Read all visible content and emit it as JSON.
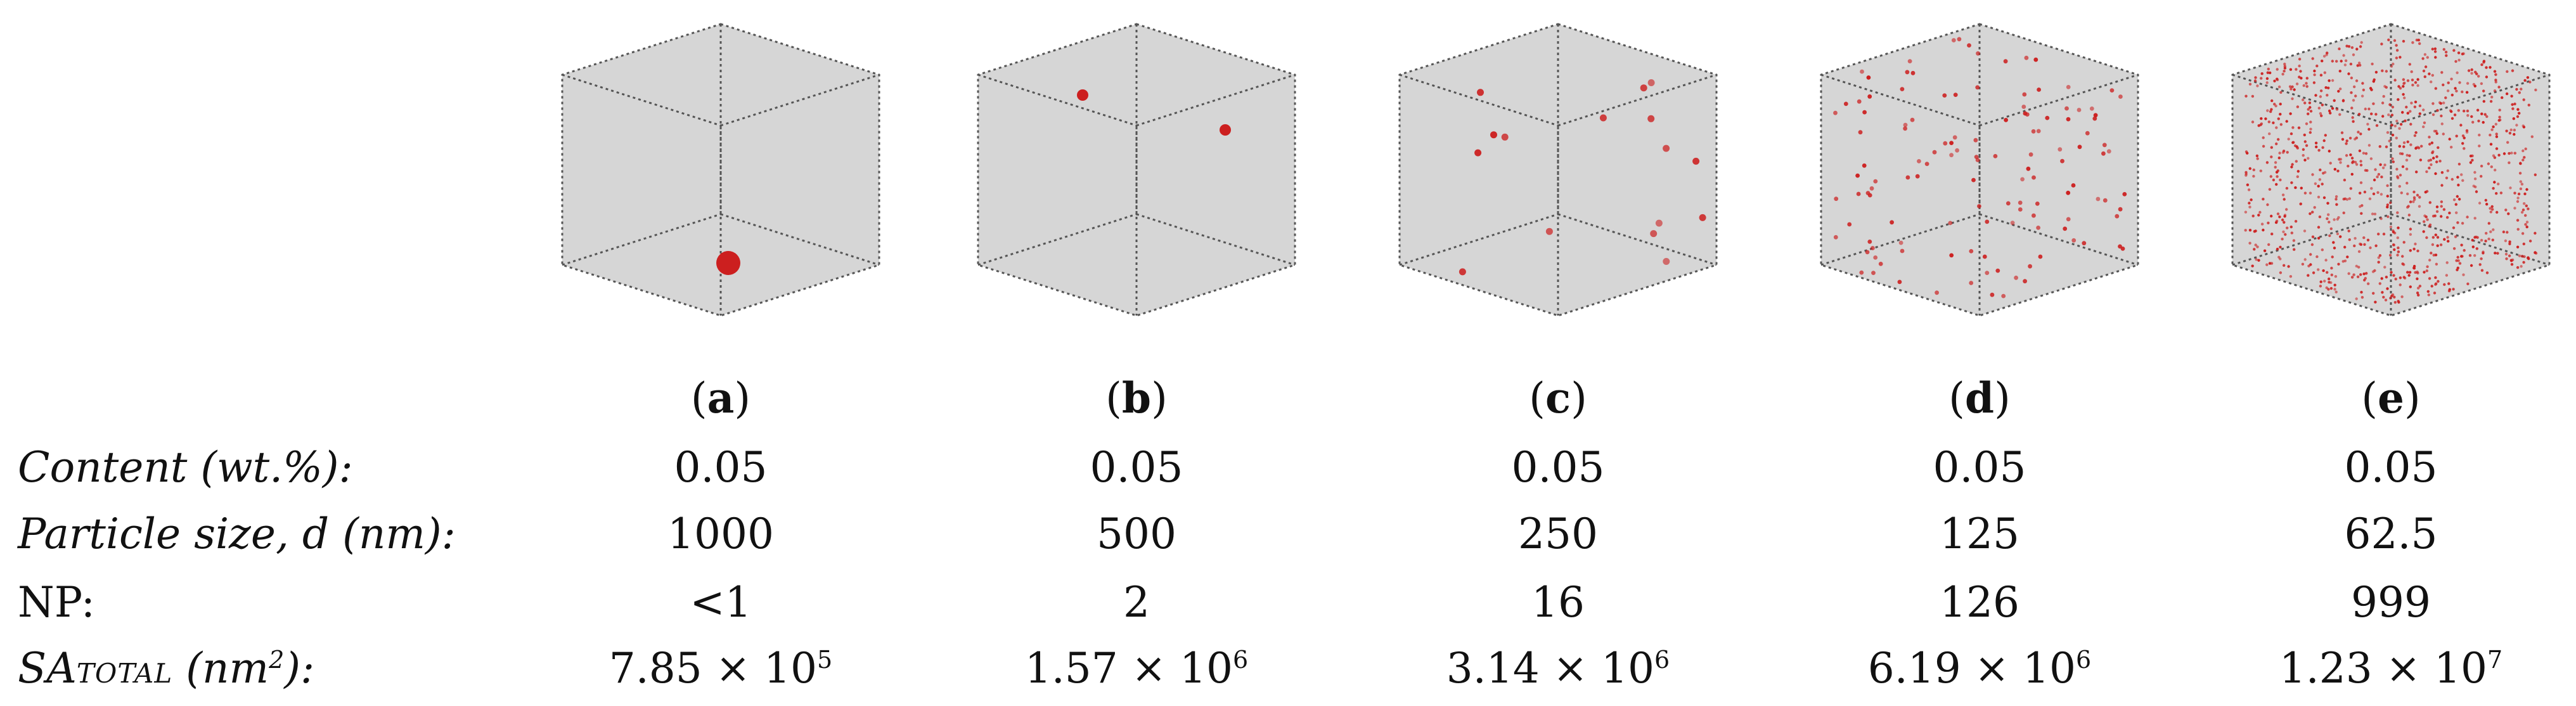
{
  "panels": [
    {
      "letter": "a",
      "content": "0.05",
      "size": "1000",
      "np": "<1",
      "sa_base": "7.85 × 10",
      "sa_exp": "5"
    },
    {
      "letter": "b",
      "content": "0.05",
      "size": "500",
      "np": "2",
      "sa_base": "1.57 × 10",
      "sa_exp": "6"
    },
    {
      "letter": "c",
      "content": "0.05",
      "size": "250",
      "np": "16",
      "sa_base": "3.14 × 10",
      "sa_exp": "6"
    },
    {
      "letter": "d",
      "content": "0.05",
      "size": "125",
      "np": "126",
      "sa_base": "6.19 × 10",
      "sa_exp": "6"
    },
    {
      "letter": "e",
      "content": "0.05",
      "size": "62.5",
      "np": "999",
      "sa_base": "1.23 × 10",
      "sa_exp": "7"
    }
  ],
  "row_labels": {
    "content": "Content (wt.%):",
    "size": "Particle size, d (nm):",
    "np": "NP:",
    "sa_prefix": "SA",
    "sa_sub": "TOTAL",
    "sa_unit_base": " (nm",
    "sa_unit_exp": "2",
    "sa_unit_close": "):"
  },
  "colors": {
    "cube_fill": "#d6d6d6",
    "cube_edge": "#555555",
    "particle": "#cc1f1f"
  },
  "particle_counts": [
    1,
    2,
    16,
    126,
    999
  ]
}
